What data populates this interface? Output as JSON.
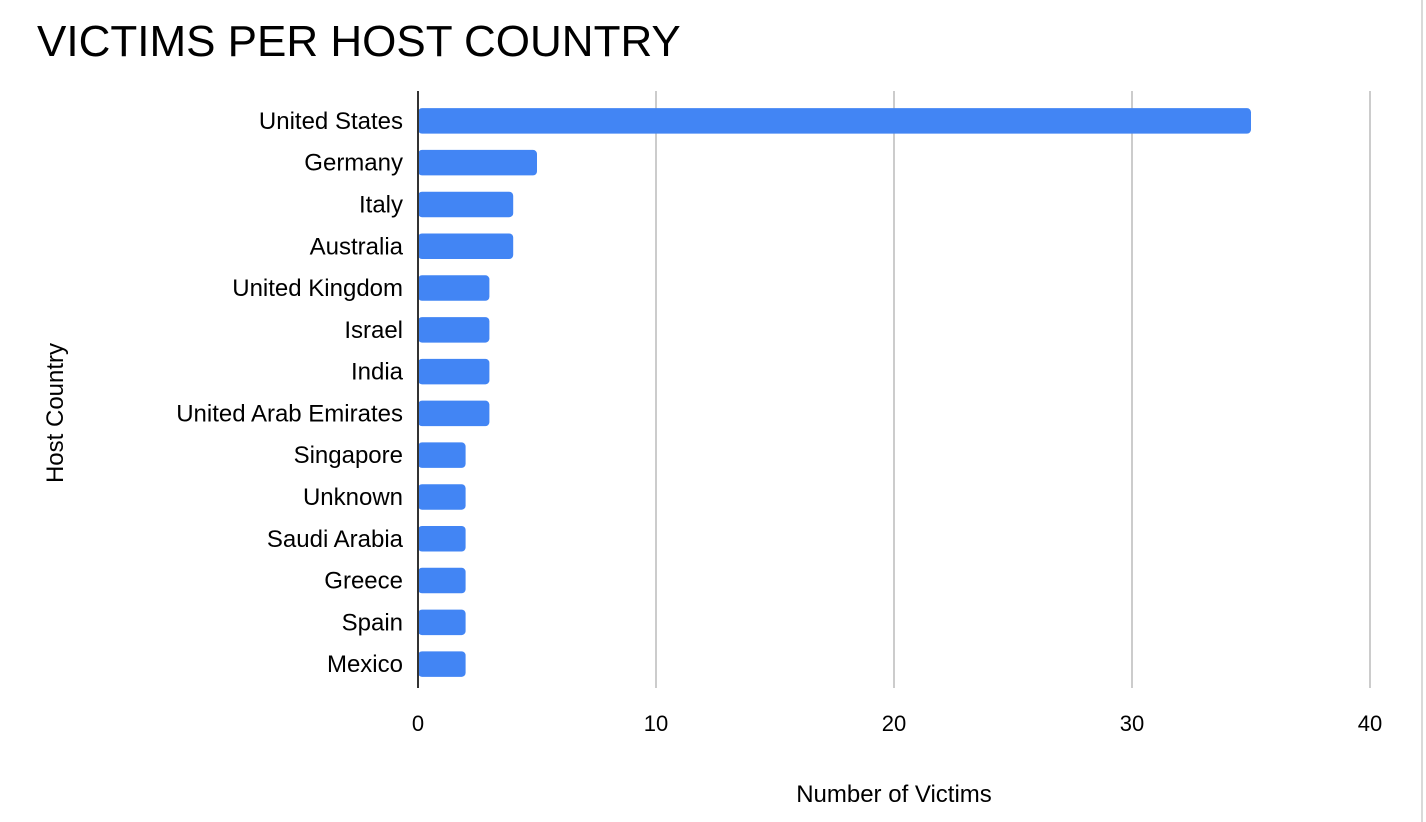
{
  "chart_data": {
    "type": "bar",
    "orientation": "horizontal",
    "title": "VICTIMS PER HOST COUNTRY",
    "xlabel": "Number of Victims",
    "ylabel": "Host Country",
    "categories": [
      "United States",
      "Germany",
      "Italy",
      "Australia",
      "United Kingdom",
      "Israel",
      "India",
      "United Arab Emirates",
      "Singapore",
      "Unknown",
      "Saudi Arabia",
      "Greece",
      "Spain",
      "Mexico"
    ],
    "values": [
      35,
      5,
      4,
      4,
      3,
      3,
      3,
      3,
      2,
      2,
      2,
      2,
      2,
      2
    ],
    "xlim": [
      0,
      40
    ],
    "xticks": [
      "0",
      "10",
      "20",
      "30",
      "40"
    ],
    "grid": true,
    "legend": "none",
    "bar_color": "#4285f4"
  }
}
